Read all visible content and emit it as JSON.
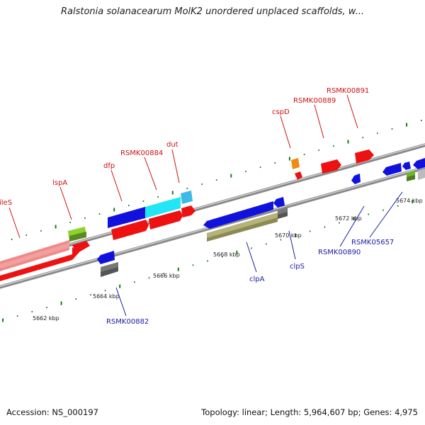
{
  "title": "Ralstonia solanacearum MolK2 unordered unplaced scaffolds, w...",
  "footer": {
    "accession": "Accession: NS_000197",
    "stats": "Topology: linear; Length: 5,964,607 bp; Genes: 4,975"
  },
  "scale": {
    "ticks": [
      "5662 kbp",
      "5664 kbp",
      "5666 kbp",
      "5668 kbp",
      "5670 kbp",
      "5672 kbp",
      "5674 kbp"
    ]
  },
  "labels": {
    "forward": [
      "ileS",
      "lspA",
      "dfp",
      "RSMK00884",
      "dut",
      "cspD",
      "RSMK00889",
      "RSMK00891"
    ],
    "reverse": [
      "RSMK00882",
      "clpA",
      "clpS",
      "RSMK00890",
      "RSMK05657"
    ]
  },
  "colors": {
    "forward_label": "#cc1111",
    "reverse_label": "#1a1aa6",
    "red_gene": "#ee1111",
    "blue_gene": "#1111dd",
    "cyan_gene": "#22e5f5",
    "gray_gene": "#777777",
    "olive_gene": "#b5b27a",
    "green_gene": "#6fb52a",
    "tick": "#1a7a1a",
    "backbone": "#8a8a8a"
  }
}
